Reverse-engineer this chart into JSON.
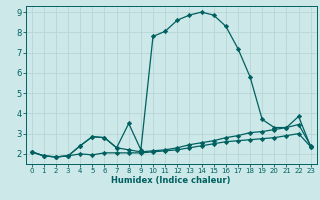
{
  "xlabel": "Humidex (Indice chaleur)",
  "bg_color": "#cce8e8",
  "grid_color": "#b8d4d4",
  "line_color": "#006060",
  "spine_color": "#006060",
  "xlim": [
    -0.5,
    23.5
  ],
  "ylim": [
    1.5,
    9.3
  ],
  "yticks": [
    2,
    3,
    4,
    5,
    6,
    7,
    8,
    9
  ],
  "xticks": [
    0,
    1,
    2,
    3,
    4,
    5,
    6,
    7,
    8,
    9,
    10,
    11,
    12,
    13,
    14,
    15,
    16,
    17,
    18,
    19,
    20,
    21,
    22,
    23
  ],
  "line3_x": [
    0,
    1,
    2,
    3,
    4,
    5,
    6,
    7,
    8,
    9,
    10,
    11,
    12,
    13,
    14,
    15,
    16,
    17,
    18,
    19,
    20,
    21,
    22,
    23
  ],
  "line3_y": [
    2.1,
    1.9,
    1.85,
    1.9,
    2.4,
    2.85,
    2.8,
    2.3,
    3.5,
    2.2,
    7.8,
    8.05,
    8.6,
    8.85,
    9.0,
    8.85,
    8.3,
    7.2,
    5.8,
    3.7,
    3.3,
    3.3,
    3.85,
    2.35
  ],
  "line1_x": [
    0,
    1,
    2,
    3,
    4,
    5,
    6,
    7,
    8,
    9,
    10,
    11,
    12,
    13,
    14,
    15,
    16,
    17,
    18,
    19,
    20,
    21,
    22,
    23
  ],
  "line1_y": [
    2.1,
    1.9,
    1.85,
    1.9,
    2.4,
    2.85,
    2.8,
    2.3,
    2.2,
    2.1,
    2.15,
    2.2,
    2.3,
    2.45,
    2.55,
    2.65,
    2.8,
    2.9,
    3.05,
    3.1,
    3.2,
    3.3,
    3.45,
    2.4
  ],
  "line2_x": [
    0,
    1,
    2,
    3,
    4,
    5,
    6,
    7,
    8,
    9,
    10,
    11,
    12,
    13,
    14,
    15,
    16,
    17,
    18,
    19,
    20,
    21,
    22,
    23
  ],
  "line2_y": [
    2.1,
    1.9,
    1.85,
    1.9,
    2.0,
    1.95,
    2.05,
    2.05,
    2.05,
    2.05,
    2.1,
    2.15,
    2.2,
    2.3,
    2.4,
    2.5,
    2.6,
    2.65,
    2.7,
    2.75,
    2.8,
    2.9,
    3.0,
    2.35
  ],
  "marker": "D",
  "markersize": 2.2,
  "linewidth": 0.9
}
